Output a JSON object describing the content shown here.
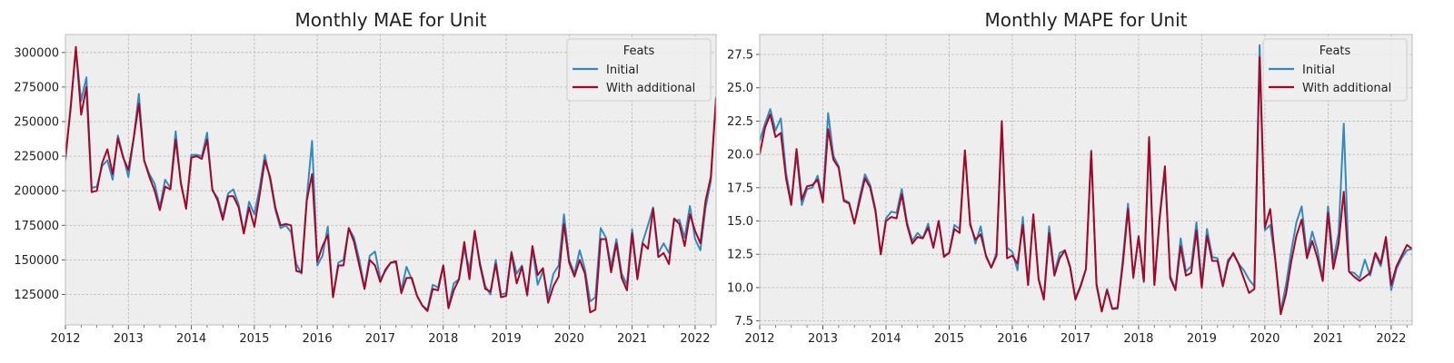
{
  "colors": {
    "initial": "#348ABD",
    "additional": "#A60628",
    "plot_bg": "#EEEEEE",
    "grid": "#B2B2B2"
  },
  "chart_data": [
    {
      "type": "line",
      "title": "Monthly MAE for Unit",
      "xlabel": "",
      "ylabel": "",
      "x_start": "2012-01",
      "x_end": "2022-05",
      "xlim": [
        2012.0,
        2022.333
      ],
      "ylim": [
        103000,
        313000
      ],
      "x_ticks": [
        "2012",
        "2013",
        "2014",
        "2015",
        "2016",
        "2017",
        "2018",
        "2019",
        "2020",
        "2021",
        "2022"
      ],
      "y_ticks": [
        125000,
        150000,
        175000,
        200000,
        225000,
        250000,
        275000,
        300000
      ],
      "y_tick_labels": [
        "125000",
        "150000",
        "175000",
        "200000",
        "225000",
        "250000",
        "275000",
        "300000"
      ],
      "grid": true,
      "legend": {
        "title": "Feats",
        "position": "top-right"
      },
      "series": [
        {
          "name": "Initial",
          "color_key": "initial",
          "values": [
            222000,
            262000,
            302000,
            265000,
            282000,
            202000,
            203000,
            218000,
            222000,
            208000,
            240000,
            225000,
            210000,
            238000,
            270000,
            222000,
            212000,
            205000,
            188000,
            208000,
            202000,
            243000,
            205000,
            188000,
            226000,
            226000,
            225000,
            242000,
            200000,
            195000,
            181000,
            198000,
            201000,
            190000,
            170000,
            192000,
            183000,
            202000,
            226000,
            208000,
            186000,
            173000,
            175000,
            170000,
            147000,
            140000,
            195000,
            236000,
            146000,
            153000,
            174000,
            123000,
            148000,
            150000,
            173000,
            166000,
            150000,
            130000,
            153000,
            156000,
            136000,
            142000,
            148000,
            148000,
            128000,
            145000,
            136000,
            124000,
            117000,
            114000,
            132000,
            130000,
            146000,
            116000,
            133000,
            136000,
            158000,
            143000,
            170000,
            148000,
            131000,
            125000,
            150000,
            125000,
            126000,
            156000,
            140000,
            146000,
            124000,
            158000,
            132000,
            142000,
            123000,
            140000,
            146000,
            183000,
            150000,
            140000,
            157000,
            143000,
            120000,
            123000,
            173000,
            166000,
            145000,
            165000,
            140000,
            132000,
            172000,
            138000,
            163000,
            175000,
            188000,
            155000,
            162000,
            155000,
            178000,
            179000,
            166000,
            189000,
            165000,
            157000,
            188000,
            207000,
            268000
          ]
        },
        {
          "name": "With additional",
          "color_key": "additional",
          "values": [
            224000,
            260000,
            304000,
            255000,
            275000,
            199000,
            200000,
            220000,
            230000,
            212000,
            238000,
            224000,
            215000,
            238000,
            263000,
            222000,
            210000,
            200000,
            186000,
            203000,
            201000,
            237000,
            206000,
            187000,
            224000,
            225000,
            223000,
            237000,
            201000,
            193000,
            179000,
            196000,
            196000,
            188000,
            169000,
            188000,
            174000,
            197000,
            222000,
            210000,
            188000,
            175000,
            176000,
            175000,
            142000,
            141000,
            193000,
            212000,
            149000,
            160000,
            168000,
            123000,
            146000,
            146000,
            173000,
            163000,
            146000,
            129000,
            150000,
            146000,
            134000,
            143000,
            148000,
            149000,
            126000,
            137000,
            137000,
            124000,
            117000,
            113000,
            129000,
            128000,
            146000,
            115000,
            128000,
            136000,
            163000,
            136000,
            171000,
            146000,
            129000,
            127000,
            147000,
            123000,
            124000,
            155000,
            133000,
            145000,
            125000,
            160000,
            139000,
            144000,
            119000,
            131000,
            138000,
            176000,
            148000,
            138000,
            150000,
            140000,
            112000,
            114000,
            165000,
            165000,
            141000,
            162000,
            137000,
            128000,
            169000,
            136000,
            162000,
            158000,
            187000,
            152000,
            155000,
            147000,
            180000,
            176000,
            160000,
            183000,
            171000,
            162000,
            193000,
            210000,
            267000
          ]
        }
      ]
    },
    {
      "type": "line",
      "title": "Monthly MAPE for Unit",
      "xlabel": "",
      "ylabel": "",
      "x_start": "2012-01",
      "x_end": "2022-05",
      "xlim": [
        2012.0,
        2022.333
      ],
      "ylim": [
        7.2,
        29.0
      ],
      "x_ticks": [
        "2012",
        "2013",
        "2014",
        "2015",
        "2016",
        "2017",
        "2018",
        "2019",
        "2020",
        "2021",
        "2022"
      ],
      "y_ticks": [
        7.5,
        10.0,
        12.5,
        15.0,
        17.5,
        20.0,
        22.5,
        25.0,
        27.5
      ],
      "y_tick_labels": [
        "7.5",
        "10.0",
        "12.5",
        "15.0",
        "17.5",
        "20.0",
        "22.5",
        "25.0",
        "27.5"
      ],
      "grid": true,
      "legend": {
        "title": "Feats",
        "position": "top-right"
      },
      "series": [
        {
          "name": "Initial",
          "color_key": "initial",
          "values": [
            21.0,
            22.3,
            23.4,
            21.8,
            22.7,
            18.6,
            16.4,
            20.0,
            16.2,
            17.4,
            17.5,
            18.4,
            16.6,
            23.1,
            19.9,
            19.1,
            16.6,
            16.4,
            14.8,
            16.8,
            18.5,
            17.7,
            15.9,
            12.5,
            15.2,
            15.7,
            15.6,
            17.4,
            14.9,
            13.5,
            14.1,
            13.7,
            14.8,
            13.0,
            15.0,
            12.4,
            12.6,
            14.7,
            14.4,
            20.3,
            14.9,
            13.3,
            14.6,
            12.3,
            11.5,
            12.6,
            22.3,
            13.0,
            12.7,
            11.3,
            15.3,
            10.2,
            15.5,
            10.7,
            9.2,
            14.6,
            11.1,
            12.6,
            12.8,
            11.6,
            9.2,
            10.2,
            11.4,
            20.3,
            10.1,
            8.2,
            9.9,
            8.4,
            8.4,
            12.1,
            16.3,
            10.7,
            13.9,
            10.4,
            21.2,
            10.2,
            15.1,
            18.8,
            10.9,
            9.9,
            13.7,
            11.2,
            11.6,
            14.9,
            10.3,
            14.4,
            12.3,
            12.2,
            10.2,
            12.1,
            12.5,
            11.8,
            11.3,
            10.6,
            10.1,
            28.2,
            14.3,
            14.7,
            12.0,
            8.2,
            10.2,
            12.7,
            14.9,
            16.1,
            12.4,
            14.2,
            12.8,
            10.6,
            16.1,
            12.0,
            14.1,
            22.3,
            11.2,
            11.1,
            10.7,
            12.1,
            10.9,
            12.5,
            11.6,
            13.5,
            9.8,
            11.4,
            12.2,
            12.8,
            12.9
          ]
        },
        {
          "name": "With additional",
          "color_key": "additional",
          "values": [
            20.0,
            22.0,
            23.0,
            21.3,
            21.6,
            18.2,
            16.2,
            20.4,
            16.6,
            17.6,
            17.7,
            18.1,
            16.4,
            21.9,
            19.6,
            19.0,
            16.5,
            16.3,
            14.8,
            16.5,
            18.2,
            17.5,
            15.7,
            12.5,
            15.0,
            15.3,
            15.2,
            17.0,
            14.7,
            13.3,
            13.8,
            13.7,
            14.5,
            13.0,
            15.0,
            12.3,
            12.6,
            14.4,
            14.1,
            20.3,
            14.7,
            13.6,
            14.0,
            12.4,
            11.5,
            12.4,
            22.5,
            12.2,
            12.4,
            11.8,
            14.7,
            10.2,
            15.5,
            10.6,
            9.1,
            14.1,
            10.9,
            12.2,
            12.8,
            11.5,
            9.1,
            10.1,
            11.4,
            20.2,
            10.3,
            8.2,
            9.8,
            8.4,
            8.5,
            11.7,
            15.9,
            10.8,
            13.8,
            10.5,
            21.3,
            10.2,
            15.3,
            19.1,
            10.7,
            9.8,
            13.1,
            10.9,
            11.1,
            14.3,
            10.0,
            13.9,
            12.0,
            12.0,
            10.1,
            11.9,
            12.6,
            11.8,
            10.7,
            9.6,
            9.9,
            27.3,
            14.5,
            15.9,
            12.0,
            8.0,
            9.5,
            11.9,
            13.9,
            15.1,
            12.2,
            13.5,
            12.2,
            10.5,
            15.6,
            11.4,
            13.3,
            17.2,
            11.2,
            10.8,
            10.5,
            10.8,
            11.1,
            12.6,
            11.8,
            13.8,
            10.2,
            11.6,
            12.4,
            13.2,
            12.9
          ]
        }
      ]
    }
  ]
}
